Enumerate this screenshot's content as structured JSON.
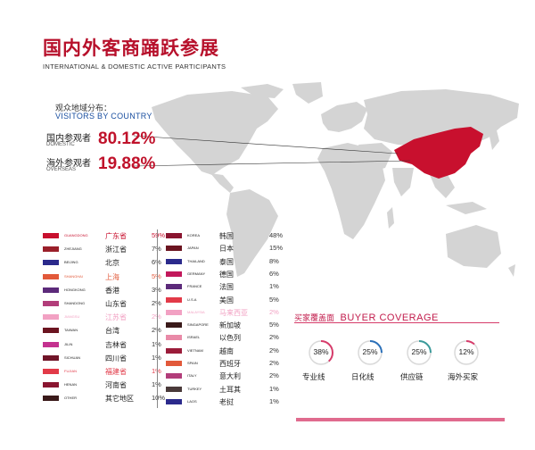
{
  "header": {
    "title": "国内外客商踊跃参展",
    "subtitle": "INTERNATIONAL & DOMESTIC ACTIVE PARTICIPANTS"
  },
  "visitors": {
    "heading_cn": "观众地域分布：",
    "heading_en": "VISITORS BY COUNTRY",
    "domestic": {
      "cn": "国内参观者",
      "en": "DOMESTIC",
      "value": "80.12%"
    },
    "overseas": {
      "cn": "海外参观者",
      "en": "OVERSEAS",
      "value": "19.88%"
    }
  },
  "colors": {
    "brand_red": "#b7102b",
    "china_fill": "#c8102e",
    "map_gray": "#d4d4d4",
    "accent_pink": "#d63b6a"
  },
  "provinces": [
    {
      "en": "GUANGDONG",
      "cn": "广东省",
      "pct": "59%",
      "color": "#c8102e",
      "hl": true
    },
    {
      "en": "ZHEJIANG",
      "cn": "浙江省",
      "pct": "7%",
      "color": "#9a1f2a",
      "hl": false
    },
    {
      "en": "BEIJING",
      "cn": "北京",
      "pct": "6%",
      "color": "#2b2a8c",
      "hl": false
    },
    {
      "en": "SHANGHAI",
      "cn": "上海",
      "pct": "5%",
      "color": "#e2593a",
      "hl": true
    },
    {
      "en": "HONGKONG",
      "cn": "香港",
      "pct": "3%",
      "color": "#5c2a7a",
      "hl": false
    },
    {
      "en": "SHANDONG",
      "cn": "山东省",
      "pct": "2%",
      "color": "#b23d7a",
      "hl": false
    },
    {
      "en": "JIANGSU",
      "cn": "江苏省",
      "pct": "2%",
      "color": "#f2a1c3",
      "hl": true
    },
    {
      "en": "TAIWAN",
      "cn": "台湾",
      "pct": "2%",
      "color": "#6b1420",
      "hl": false
    },
    {
      "en": "JILIN",
      "cn": "吉林省",
      "pct": "1%",
      "color": "#c4318f",
      "hl": false
    },
    {
      "en": "SICHUAN",
      "cn": "四川省",
      "pct": "1%",
      "color": "#701428",
      "hl": false
    },
    {
      "en": "FUJIAN",
      "cn": "福建省",
      "pct": "1%",
      "color": "#e23a48",
      "hl": true
    },
    {
      "en": "HENAN",
      "cn": "河南省",
      "pct": "1%",
      "color": "#8a1530",
      "hl": false
    },
    {
      "en": "OTHER",
      "cn": "其它地区",
      "pct": "10%",
      "color": "#3a1a1a",
      "hl": false
    }
  ],
  "countries": [
    {
      "en": "KOREA",
      "cn": "韩国",
      "pct": "48%",
      "color": "#8a1530",
      "hl": false
    },
    {
      "en": "JAPAN",
      "cn": "日本",
      "pct": "15%",
      "color": "#6b1420",
      "hl": false
    },
    {
      "en": "THAILAND",
      "cn": "泰国",
      "pct": "8%",
      "color": "#2b2a8c",
      "hl": false
    },
    {
      "en": "GERMANY",
      "cn": "德国",
      "pct": "6%",
      "color": "#c2185b",
      "hl": false
    },
    {
      "en": "FRANCE",
      "cn": "法国",
      "pct": "1%",
      "color": "#5c2a7a",
      "hl": false
    },
    {
      "en": "U.S.A",
      "cn": "美国",
      "pct": "5%",
      "color": "#e23a48",
      "hl": false
    },
    {
      "en": "MALAYSIA",
      "cn": "马来西亚",
      "pct": "2%",
      "color": "#f2a1c3",
      "hl": true
    },
    {
      "en": "SINGAPORE",
      "cn": "新加坡",
      "pct": "5%",
      "color": "#3a1a1a",
      "hl": false
    },
    {
      "en": "ISRAEL",
      "cn": "以色列",
      "pct": "2%",
      "color": "#e98aa8",
      "hl": false
    },
    {
      "en": "VIETNAM",
      "cn": "越南",
      "pct": "2%",
      "color": "#9b1c3a",
      "hl": false
    },
    {
      "en": "SPAIN",
      "cn": "西班牙",
      "pct": "2%",
      "color": "#e2593a",
      "hl": false
    },
    {
      "en": "ITALY",
      "cn": "意大利",
      "pct": "2%",
      "color": "#b23d7a",
      "hl": false
    },
    {
      "en": "TURKEY",
      "cn": "土耳其",
      "pct": "1%",
      "color": "#4a3a3a",
      "hl": false
    },
    {
      "en": "LAOS",
      "cn": "老挝",
      "pct": "1%",
      "color": "#2b2a8c",
      "hl": false
    }
  ],
  "coverage": {
    "title_cn": "买家覆盖面",
    "title_en": "BUYER COVERAGE",
    "items": [
      {
        "pct": "38%",
        "label": "专业线",
        "fraction": 0.38,
        "color": "#d63b6a"
      },
      {
        "pct": "25%",
        "label": "日化线",
        "fraction": 0.25,
        "color": "#2a6fb8"
      },
      {
        "pct": "25%",
        "label": "供应链",
        "fraction": 0.25,
        "color": "#3a9a9a"
      },
      {
        "pct": "12%",
        "label": "海外买家",
        "fraction": 0.12,
        "color": "#d63b6a"
      }
    ]
  }
}
